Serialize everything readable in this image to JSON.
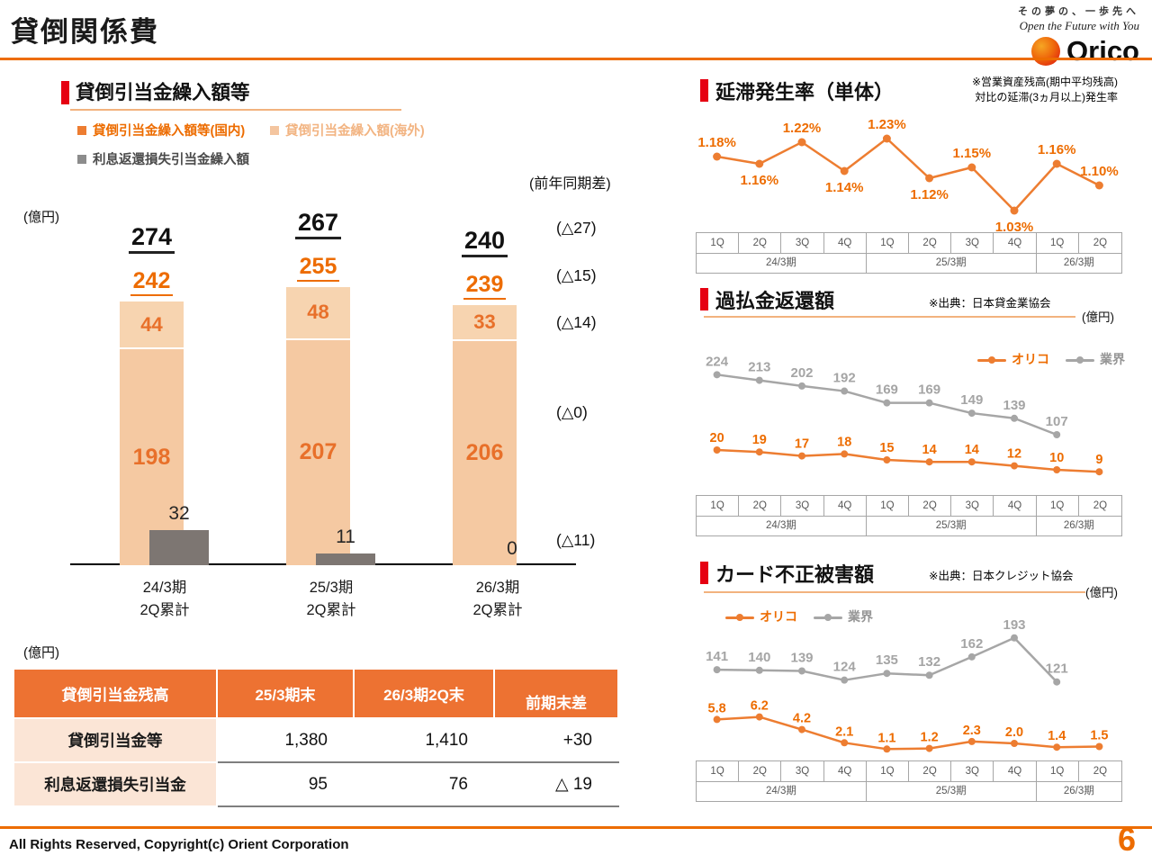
{
  "page": {
    "title": "貸倒関係費",
    "footer": "All Rights Reserved, Copyright(c) Orient Corporation",
    "page_number": "6"
  },
  "logo": {
    "tagline_jp": "その夢の、一歩先へ",
    "tagline_en": "Open the Future with You",
    "brand": "Orico"
  },
  "colors": {
    "accent_orange": "#ED6C00",
    "line_orange": "#ED7D31",
    "series_gray": "#A6A6A6",
    "bar_fill": "#F5C9A2",
    "bar_gray": "#7D7672",
    "section_red": "#E60012",
    "table_header_bg": "#ED7232",
    "table_label_bg": "#FBE5D6"
  },
  "left": {
    "section_title": "貸倒引当金繰入額等",
    "legend": [
      {
        "label": "貸倒引当金繰入額等(国内)"
      },
      {
        "label": "貸倒引当金繰入額(海外)"
      },
      {
        "label": "利息返還損失引当金繰入額"
      }
    ],
    "unit_label": "(億円)",
    "diff_header": "(前年同期差)",
    "table_unit": "(億円)",
    "table": {
      "headers": [
        "貸倒引当金残高",
        "25/3期末",
        "26/3期2Q末",
        "前期末差"
      ],
      "rows": [
        {
          "label": "貸倒引当金等",
          "values": [
            "1,380",
            "1,410",
            "+30"
          ]
        },
        {
          "label": "利息返還損失引当金",
          "values": [
            "95",
            "76",
            "△ 19"
          ]
        }
      ]
    }
  },
  "right": {
    "axis": {
      "quarters": [
        "1Q",
        "2Q",
        "3Q",
        "4Q",
        "1Q",
        "2Q",
        "3Q",
        "4Q",
        "1Q",
        "2Q"
      ],
      "periods": [
        {
          "label": "24/3期",
          "span": 4
        },
        {
          "label": "25/3期",
          "span": 4
        },
        {
          "label": "26/3期",
          "span": 2
        }
      ]
    },
    "sections": [
      {
        "title": "延滞発生率（単体）",
        "note_lines": [
          "※営業資産残高(期中平均残高)",
          "対比の延滞(3ヵ月以上)発生率"
        ]
      },
      {
        "title": "過払金返還額",
        "note": "※出典：日本貸金業協会",
        "unit": "(億円)",
        "legend": [
          "オリコ",
          "業界"
        ]
      },
      {
        "title": "カード不正被害額",
        "note": "※出典：日本クレジット協会",
        "unit": "(億円)",
        "legend": [
          "オリコ",
          "業界"
        ]
      }
    ]
  },
  "chart_data": [
    {
      "id": "loss-allowance-bars",
      "type": "bar",
      "title": "貸倒引当金繰入額等",
      "ylabel": "億円",
      "categories": [
        "24/3期",
        "25/3期",
        "26/3期"
      ],
      "categories_sub": [
        "2Q累計",
        "2Q累計",
        "2Q累計"
      ],
      "series": [
        {
          "name": "貸倒引当金繰入額等(国内)",
          "values": [
            198,
            207,
            206
          ]
        },
        {
          "name": "貸倒引当金繰入額(海外)",
          "values": [
            44,
            48,
            33
          ]
        },
        {
          "name": "利息返還損失引当金繰入額",
          "values": [
            32,
            11,
            0
          ]
        }
      ],
      "stack_totals": [
        242,
        255,
        239
      ],
      "grand_totals": [
        274,
        267,
        240
      ],
      "yoy_diffs": [
        "(△27)",
        "(△15)",
        "(△14)",
        "(△0)",
        "(△11)"
      ]
    },
    {
      "id": "delinquency-rate",
      "type": "line",
      "title": "延滞発生率（単体）",
      "x": [
        "1Q",
        "2Q",
        "3Q",
        "4Q",
        "1Q",
        "2Q",
        "3Q",
        "4Q",
        "1Q",
        "2Q"
      ],
      "series": [
        {
          "name": "延滞発生率",
          "values": [
            1.18,
            1.16,
            1.22,
            1.14,
            1.23,
            1.12,
            1.15,
            1.03,
            1.16,
            1.1
          ],
          "labels": [
            "1.18%",
            "1.16%",
            "1.22%",
            "1.14%",
            "1.23%",
            "1.12%",
            "1.15%",
            "1.03%",
            "1.16%",
            "1.10%"
          ]
        }
      ]
    },
    {
      "id": "overpayment-refunds",
      "type": "line",
      "title": "過払金返還額",
      "ylabel": "億円",
      "x": [
        "1Q",
        "2Q",
        "3Q",
        "4Q",
        "1Q",
        "2Q",
        "3Q",
        "4Q",
        "1Q",
        "2Q"
      ],
      "series": [
        {
          "name": "オリコ",
          "values": [
            20,
            19,
            17,
            18,
            15,
            14,
            14,
            12,
            10,
            9
          ],
          "labels": [
            "20",
            "19",
            "17",
            "18",
            "15",
            "14",
            "14",
            "12",
            "10",
            "9"
          ]
        },
        {
          "name": "業界",
          "values": [
            224,
            213,
            202,
            192,
            169,
            169,
            149,
            139,
            107
          ],
          "labels": [
            "224",
            "213",
            "202",
            "192",
            "169",
            "169",
            "149",
            "139",
            "107"
          ]
        }
      ]
    },
    {
      "id": "card-fraud-damage",
      "type": "line",
      "title": "カード不正被害額",
      "ylabel": "億円",
      "x": [
        "1Q",
        "2Q",
        "3Q",
        "4Q",
        "1Q",
        "2Q",
        "3Q",
        "4Q",
        "1Q",
        "2Q"
      ],
      "series": [
        {
          "name": "オリコ",
          "values": [
            5.8,
            6.2,
            4.2,
            2.1,
            1.1,
            1.2,
            2.3,
            2.0,
            1.4,
            1.5
          ],
          "labels": [
            "5.8",
            "6.2",
            "4.2",
            "2.1",
            "1.1",
            "1.2",
            "2.3",
            "2.0",
            "1.4",
            "1.5"
          ]
        },
        {
          "name": "業界",
          "values": [
            141,
            140,
            139,
            124,
            135,
            132,
            162,
            193,
            121
          ],
          "labels": [
            "141",
            "140",
            "139",
            "124",
            "135",
            "132",
            "162",
            "193",
            "121"
          ]
        }
      ]
    }
  ]
}
